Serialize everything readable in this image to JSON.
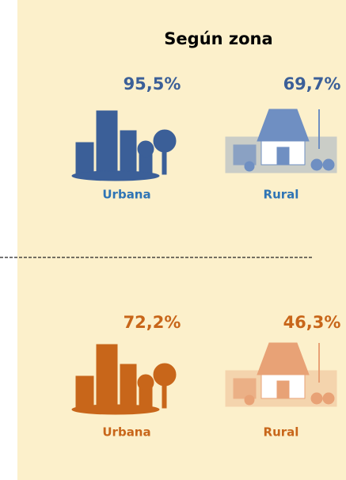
{
  "title": "Según zona",
  "sections": [
    {
      "items": [
        {
          "value": "95,5%",
          "label": "Urbana"
        },
        {
          "value": "69,7%",
          "label": "Rural"
        }
      ]
    },
    {
      "items": [
        {
          "value": "72,2%",
          "label": "Urbana"
        },
        {
          "value": "46,3%",
          "label": "Rural"
        }
      ]
    }
  ]
}
